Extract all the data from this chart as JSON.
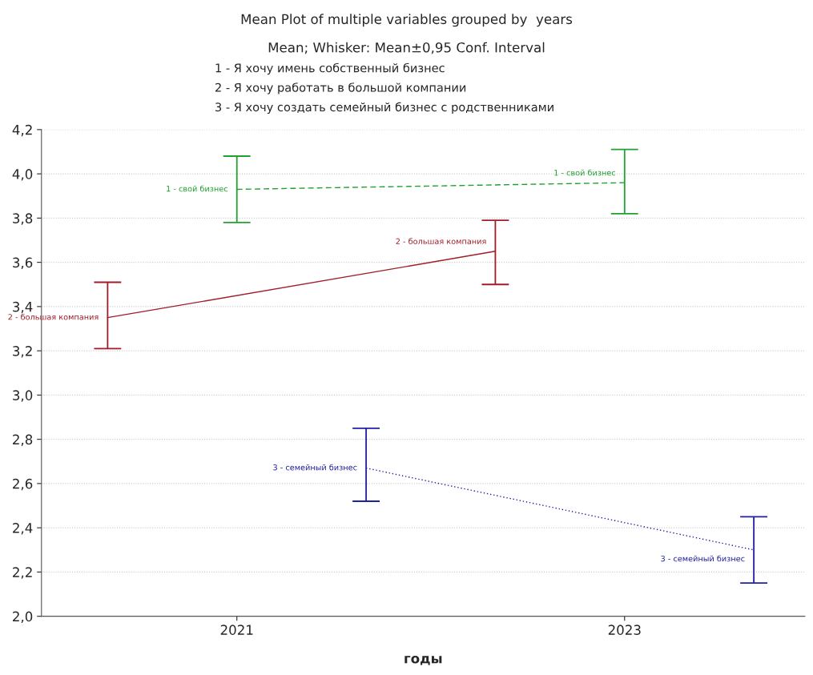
{
  "chart_data": {
    "type": "line",
    "title": "Mean Plot of multiple variables grouped by  years",
    "subtitle": "Mean; Whisker: Mean±0,95 Conf. Interval",
    "annotations": [
      "1 - Я хочу имень собственный бизнес",
      "2 - Я хочу работать в большой компании",
      "3 - Я хочу создать семейный бизнес с родственниками"
    ],
    "xlabel": "годы",
    "categories": [
      "2021",
      "2023"
    ],
    "series": [
      {
        "name": "2 - большая компания",
        "color": "#a01c28",
        "values": [
          3.35,
          3.65
        ],
        "errors": [
          [
            3.21,
            3.51
          ],
          [
            3.5,
            3.79
          ]
        ],
        "line_style": "solid"
      },
      {
        "name": "1 - свой бизнес",
        "color": "#22a030",
        "values": [
          3.93,
          3.96
        ],
        "errors": [
          [
            3.78,
            4.08
          ],
          [
            3.82,
            4.11
          ]
        ],
        "line_style": "dashed"
      },
      {
        "name": "3 - семейный бизнес",
        "color": "#2020a0",
        "values": [
          2.67,
          2.3
        ],
        "errors": [
          [
            2.52,
            2.85
          ],
          [
            2.15,
            2.45
          ]
        ],
        "line_style": "dotted"
      }
    ],
    "ylim": [
      2.0,
      4.2
    ],
    "yticks": [
      {
        "value": 2.0,
        "label": "2,0"
      },
      {
        "value": 2.2,
        "label": "2,2"
      },
      {
        "value": 2.4,
        "label": "2,4"
      },
      {
        "value": 2.6,
        "label": "2,6"
      },
      {
        "value": 2.8,
        "label": "2,8"
      },
      {
        "value": 3.0,
        "label": "3,0"
      },
      {
        "value": 3.2,
        "label": "3,2"
      },
      {
        "value": 3.4,
        "label": "3,4"
      },
      {
        "value": 3.6,
        "label": "3,6"
      },
      {
        "value": 3.8,
        "label": "3,8"
      },
      {
        "value": 4.0,
        "label": "4,0"
      },
      {
        "value": 4.2,
        "label": "4,2"
      }
    ],
    "grid": "y",
    "marker": "none",
    "legend": false
  }
}
